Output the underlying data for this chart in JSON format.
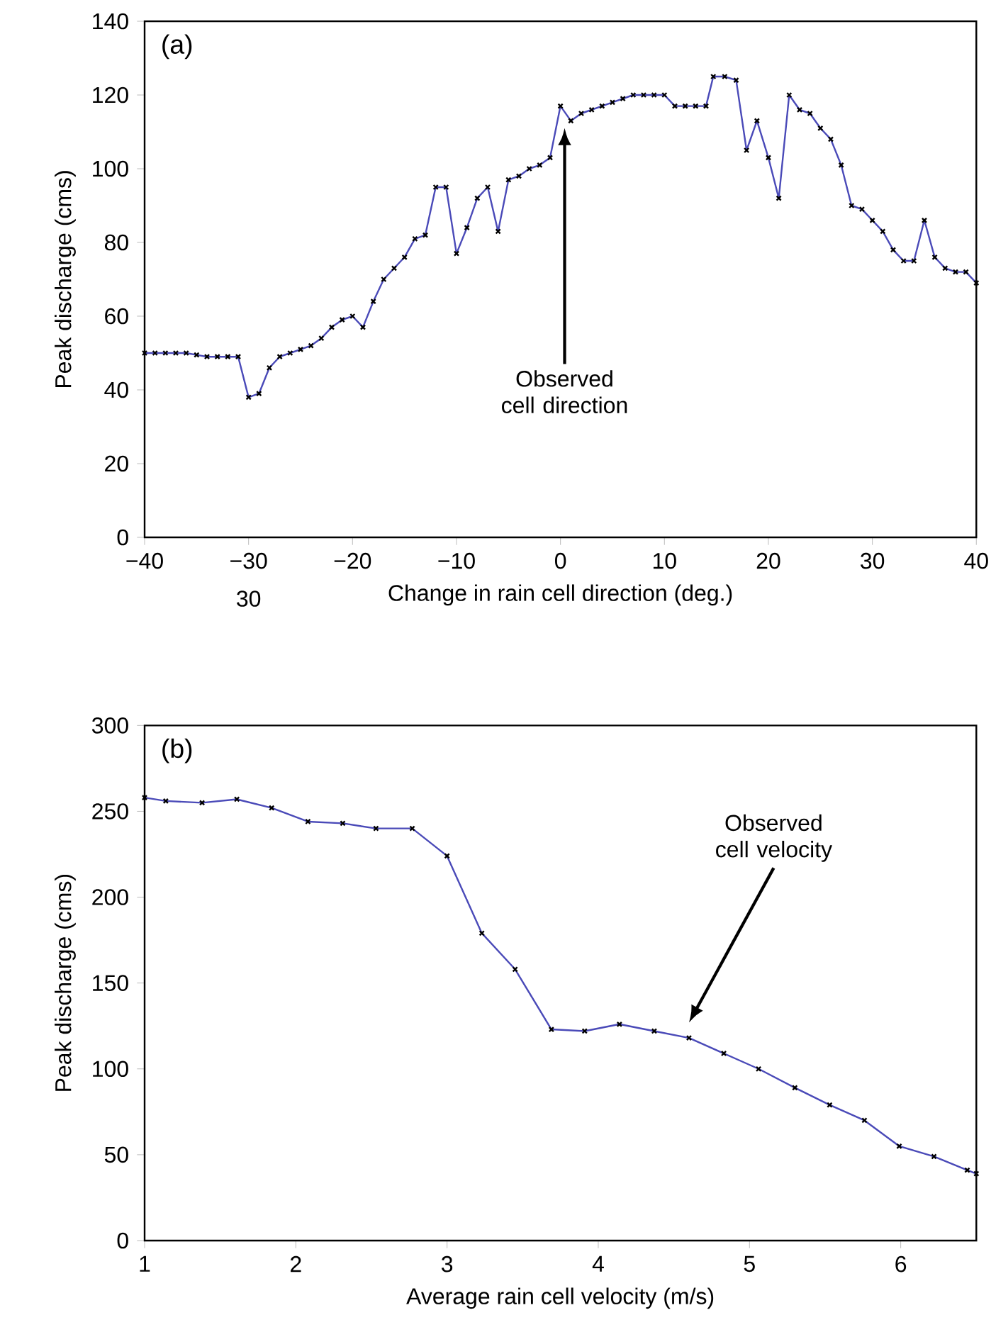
{
  "chart_data": [
    {
      "type": "line",
      "title": "(a)",
      "xlabel": "Change in rain cell direction (deg.)",
      "ylabel": "Peak discharge (cms)",
      "xlim": [
        -40,
        40
      ],
      "ylim": [
        0,
        140
      ],
      "xticks": [
        {
          "value": -40,
          "label": "−40"
        },
        {
          "value": -30,
          "label": "−30"
        },
        {
          "value": -20,
          "label": "−20"
        },
        {
          "value": -10,
          "label": "−10"
        },
        0,
        10,
        20,
        30,
        40
      ],
      "yticks": [
        0,
        20,
        40,
        60,
        80,
        100,
        120,
        140
      ],
      "marker": "cross",
      "annotations": [
        "Observed cell direction",
        "30"
      ],
      "series": [
        {
          "color": "#4a4ab8",
          "x": [
            -40,
            -39,
            -38,
            -37,
            -36,
            -35,
            -34,
            -33,
            -32,
            -31,
            -30,
            -29,
            -28,
            -27,
            -26,
            -25,
            -24,
            -23,
            -22,
            -21,
            -20,
            -19,
            -18,
            -17,
            -16,
            -15,
            -14,
            -13,
            -12,
            -11,
            -10,
            -9,
            -8,
            -7,
            -6,
            -5,
            -4,
            -3,
            -2,
            -1,
            0,
            1,
            2,
            3,
            4,
            5,
            6,
            7,
            8,
            9,
            10,
            11,
            12,
            13,
            14,
            14.7,
            15.8,
            16.9,
            17.9,
            18.9,
            20,
            21,
            22,
            23,
            24,
            25,
            26,
            27,
            28,
            29,
            30,
            31,
            32,
            33,
            34,
            35,
            36,
            37,
            38,
            39,
            40
          ],
          "values": [
            50,
            50,
            50,
            50,
            50,
            49.5,
            49,
            49,
            49,
            49,
            38,
            39,
            46,
            49,
            50,
            51,
            52,
            54,
            57,
            59,
            60,
            57,
            64,
            70,
            73,
            76,
            81,
            82,
            95,
            95,
            77,
            84,
            92,
            95,
            83,
            97,
            98,
            100,
            101,
            103,
            117,
            113,
            115,
            116,
            117,
            118,
            119,
            120,
            120,
            120,
            120,
            117,
            117,
            117,
            117,
            125,
            125,
            124,
            105,
            113,
            103,
            92,
            120,
            116,
            115,
            111,
            108,
            101,
            90,
            89,
            86,
            83,
            78,
            75,
            75,
            86,
            76,
            73,
            72,
            72,
            69
          ]
        }
      ]
    },
    {
      "type": "line",
      "title": "(b)",
      "xlabel": "Average rain cell velocity (m/s)",
      "ylabel": "Peak discharge (cms)",
      "xlim": [
        1,
        6.5
      ],
      "ylim": [
        0,
        300
      ],
      "xticks": [
        1,
        2,
        3,
        4,
        5,
        6
      ],
      "yticks": [
        0,
        50,
        100,
        150,
        200,
        250,
        300
      ],
      "marker": "cross",
      "annotations": [
        "Observed cell velocity"
      ],
      "series": [
        {
          "color": "#4a4ab8",
          "x": [
            1,
            1.14,
            1.38,
            1.61,
            1.84,
            2.08,
            2.31,
            2.53,
            2.77,
            3.0,
            3.23,
            3.45,
            3.69,
            3.91,
            4.14,
            4.37,
            4.6,
            4.83,
            5.06,
            5.3,
            5.53,
            5.76,
            5.99,
            6.22,
            6.44,
            6.5
          ],
          "values": [
            258,
            256,
            255,
            257,
            252,
            244,
            243,
            240,
            240,
            224,
            179,
            158,
            123,
            122,
            126,
            122,
            118,
            109,
            100,
            89,
            79,
            70,
            55,
            49,
            41,
            39
          ]
        }
      ]
    }
  ]
}
